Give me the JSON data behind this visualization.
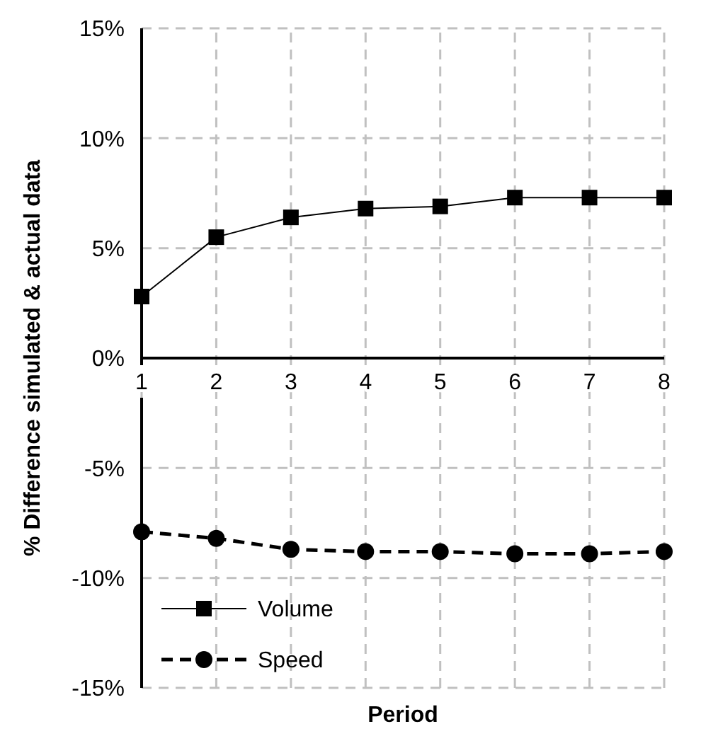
{
  "chart_data": {
    "type": "line",
    "xlabel": "Period",
    "ylabel": "% Difference simulated & actual data",
    "x": [
      1,
      2,
      3,
      4,
      5,
      6,
      7,
      8
    ],
    "xlim": [
      1,
      8
    ],
    "xticks": [
      1,
      2,
      3,
      4,
      5,
      6,
      7,
      8
    ],
    "ylim": [
      -15,
      15
    ],
    "yticks": [
      {
        "value": -15,
        "label": "-15%"
      },
      {
        "value": -10,
        "label": "-10%"
      },
      {
        "value": -5,
        "label": "-5%"
      },
      {
        "value": 0,
        "label": "0%"
      },
      {
        "value": 5,
        "label": "5%"
      },
      {
        "value": 10,
        "label": "10%"
      },
      {
        "value": 15,
        "label": "15%"
      }
    ],
    "grid": true,
    "legend": "bottom left",
    "series": [
      {
        "name": "Volume",
        "color": "#000000",
        "marker": "square",
        "line_style": "solid",
        "values": [
          2.8,
          5.5,
          6.4,
          6.8,
          6.9,
          7.3,
          7.3,
          7.3
        ]
      },
      {
        "name": "Speed",
        "color": "#000000",
        "marker": "circle",
        "line_style": "dashed",
        "values": [
          -7.9,
          -8.2,
          -8.7,
          -8.8,
          -8.8,
          -8.9,
          -8.9,
          -8.8
        ]
      }
    ]
  }
}
